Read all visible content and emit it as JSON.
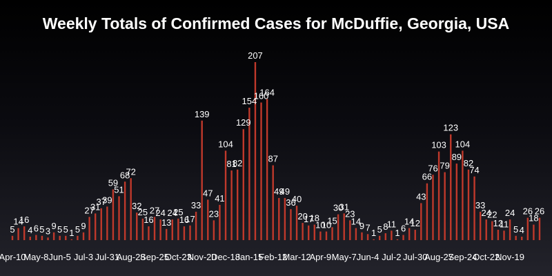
{
  "chart_data": {
    "type": "bar",
    "title": "Weekly Totals of Confirmed Cases for McDuffie, Georgia, USA",
    "xlabel": "",
    "ylabel": "",
    "ylim": [
      0,
      207
    ],
    "grid": false,
    "legend": "none",
    "bar_color": "#c0392b",
    "tick_labels": [
      "Apr-10",
      "May-8",
      "Jun-5",
      "Jul-3",
      "Jul-31",
      "Aug-28",
      "Sep-25",
      "Oct-23",
      "Nov-20",
      "Dec-18",
      "Jan-15",
      "Feb-12",
      "Mar-12",
      "Apr-9",
      "May-7",
      "Jun-4",
      "Jul-2",
      "Jul-30",
      "Aug-27",
      "Sep-24",
      "Oct-22",
      "Nov-19"
    ],
    "values": [
      5,
      14,
      16,
      4,
      6,
      5,
      3,
      9,
      5,
      5,
      1,
      5,
      9,
      27,
      31,
      37,
      39,
      59,
      51,
      68,
      72,
      32,
      25,
      16,
      27,
      24,
      13,
      24,
      25,
      16,
      17,
      33,
      139,
      47,
      23,
      41,
      104,
      81,
      82,
      129,
      154,
      207,
      160,
      164,
      87,
      49,
      49,
      36,
      40,
      20,
      17,
      18,
      10,
      10,
      15,
      30,
      31,
      23,
      14,
      9,
      7,
      1,
      5,
      8,
      11,
      1,
      6,
      14,
      12,
      43,
      66,
      76,
      103,
      79,
      123,
      89,
      104,
      82,
      74,
      33,
      24,
      22,
      12,
      11,
      24,
      5,
      4,
      26,
      18,
      26
    ]
  }
}
